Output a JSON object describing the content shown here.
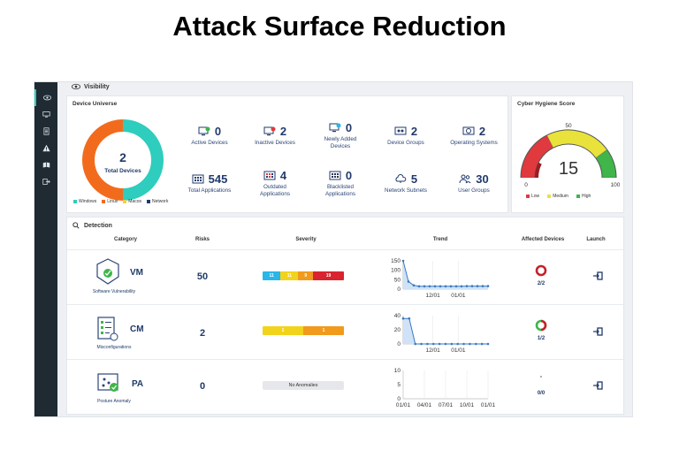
{
  "slide": {
    "title": "Attack Surface Reduction"
  },
  "nav": {
    "icons": [
      "eye-icon",
      "monitor-icon",
      "document-icon",
      "warning-icon",
      "book-icon",
      "logout-icon"
    ]
  },
  "visibility": {
    "header": "Visibility",
    "device_universe": {
      "title": "Device Universe",
      "donut": {
        "value": "2",
        "label": "Total Devices",
        "segments": [
          {
            "name": "Windows",
            "value": 1,
            "color": "#2ecdbd"
          },
          {
            "name": "Linux",
            "value": 1,
            "color": "#f26b1d"
          }
        ]
      },
      "legend": [
        {
          "label": "Windows",
          "color": "#2ecdbd"
        },
        {
          "label": "Linux",
          "color": "#f26b1d"
        },
        {
          "label": "Macos",
          "color": "#f4d03f"
        },
        {
          "label": "Network",
          "color": "#213a6b"
        }
      ],
      "metrics": [
        {
          "value": "0",
          "label": "Active Devices"
        },
        {
          "value": "2",
          "label": "Inactive Devices"
        },
        {
          "value": "0",
          "label": "Newly Added Devices"
        },
        {
          "value": "2",
          "label": "Device Groups"
        },
        {
          "value": "2",
          "label": "Operating Systems"
        },
        {
          "value": "545",
          "label": "Total Applications"
        },
        {
          "value": "4",
          "label": "Outdated Applications"
        },
        {
          "value": "0",
          "label": "Blacklisted Applications"
        },
        {
          "value": "5",
          "label": "Network Subnets"
        },
        {
          "value": "30",
          "label": "User Groups"
        }
      ]
    },
    "cyber_hygiene": {
      "title": "Cyber Hygiene Score",
      "score": "15",
      "scale": {
        "min": "0",
        "mid": "50",
        "max": "100"
      },
      "legend": [
        {
          "label": "Low",
          "color": "#e0393e"
        },
        {
          "label": "Medium",
          "color": "#e8e23a"
        },
        {
          "label": "High",
          "color": "#3fb54a"
        }
      ]
    }
  },
  "detection": {
    "header": "Detection",
    "columns": [
      "Category",
      "Risks",
      "Severity",
      "Trend",
      "Affected Devices",
      "Launch"
    ],
    "rows": [
      {
        "code": "VM",
        "name": "Software Vulnerability",
        "risks": "50",
        "severity": [
          {
            "value": "11",
            "color": "#29b6e8"
          },
          {
            "value": "11",
            "color": "#f2d31b"
          },
          {
            "value": "9",
            "color": "#f29a1b"
          },
          {
            "value": "19",
            "color": "#d9232e"
          }
        ],
        "trend": {
          "yticks": [
            "150",
            "100",
            "50",
            "0"
          ],
          "xticks": [
            "12/01",
            "01/01"
          ],
          "ymax": 150,
          "points": [
            150,
            40,
            20,
            15,
            15,
            15,
            15,
            15,
            15,
            15,
            15,
            15,
            16,
            16,
            16,
            16,
            16
          ]
        },
        "affected": "2/2",
        "affected_ratio": 1.0
      },
      {
        "code": "CM",
        "name": "Misconfigurations",
        "risks": "2",
        "severity": [
          {
            "value": "1",
            "color": "#f2d31b"
          },
          {
            "value": "1",
            "color": "#f29a1b"
          }
        ],
        "trend": {
          "yticks": [
            "40",
            "20",
            "0"
          ],
          "xticks": [
            "12/01",
            "01/01"
          ],
          "ymax": 50,
          "points": [
            45,
            45,
            0,
            0,
            0,
            0,
            0,
            0,
            0,
            0,
            0,
            0,
            0,
            0,
            0
          ]
        },
        "affected": "1/2",
        "affected_ratio": 0.5
      },
      {
        "code": "PA",
        "name": "Posture Anomaly",
        "risks": "0",
        "severity_text": "No Anomalies",
        "trend": {
          "yticks": [
            "10",
            "5",
            "0"
          ],
          "xticks": [
            "01/01",
            "04/01",
            "07/01",
            "10/01",
            "01/01"
          ]
        },
        "affected": "0/0",
        "affected_ratio": 0
      }
    ]
  }
}
